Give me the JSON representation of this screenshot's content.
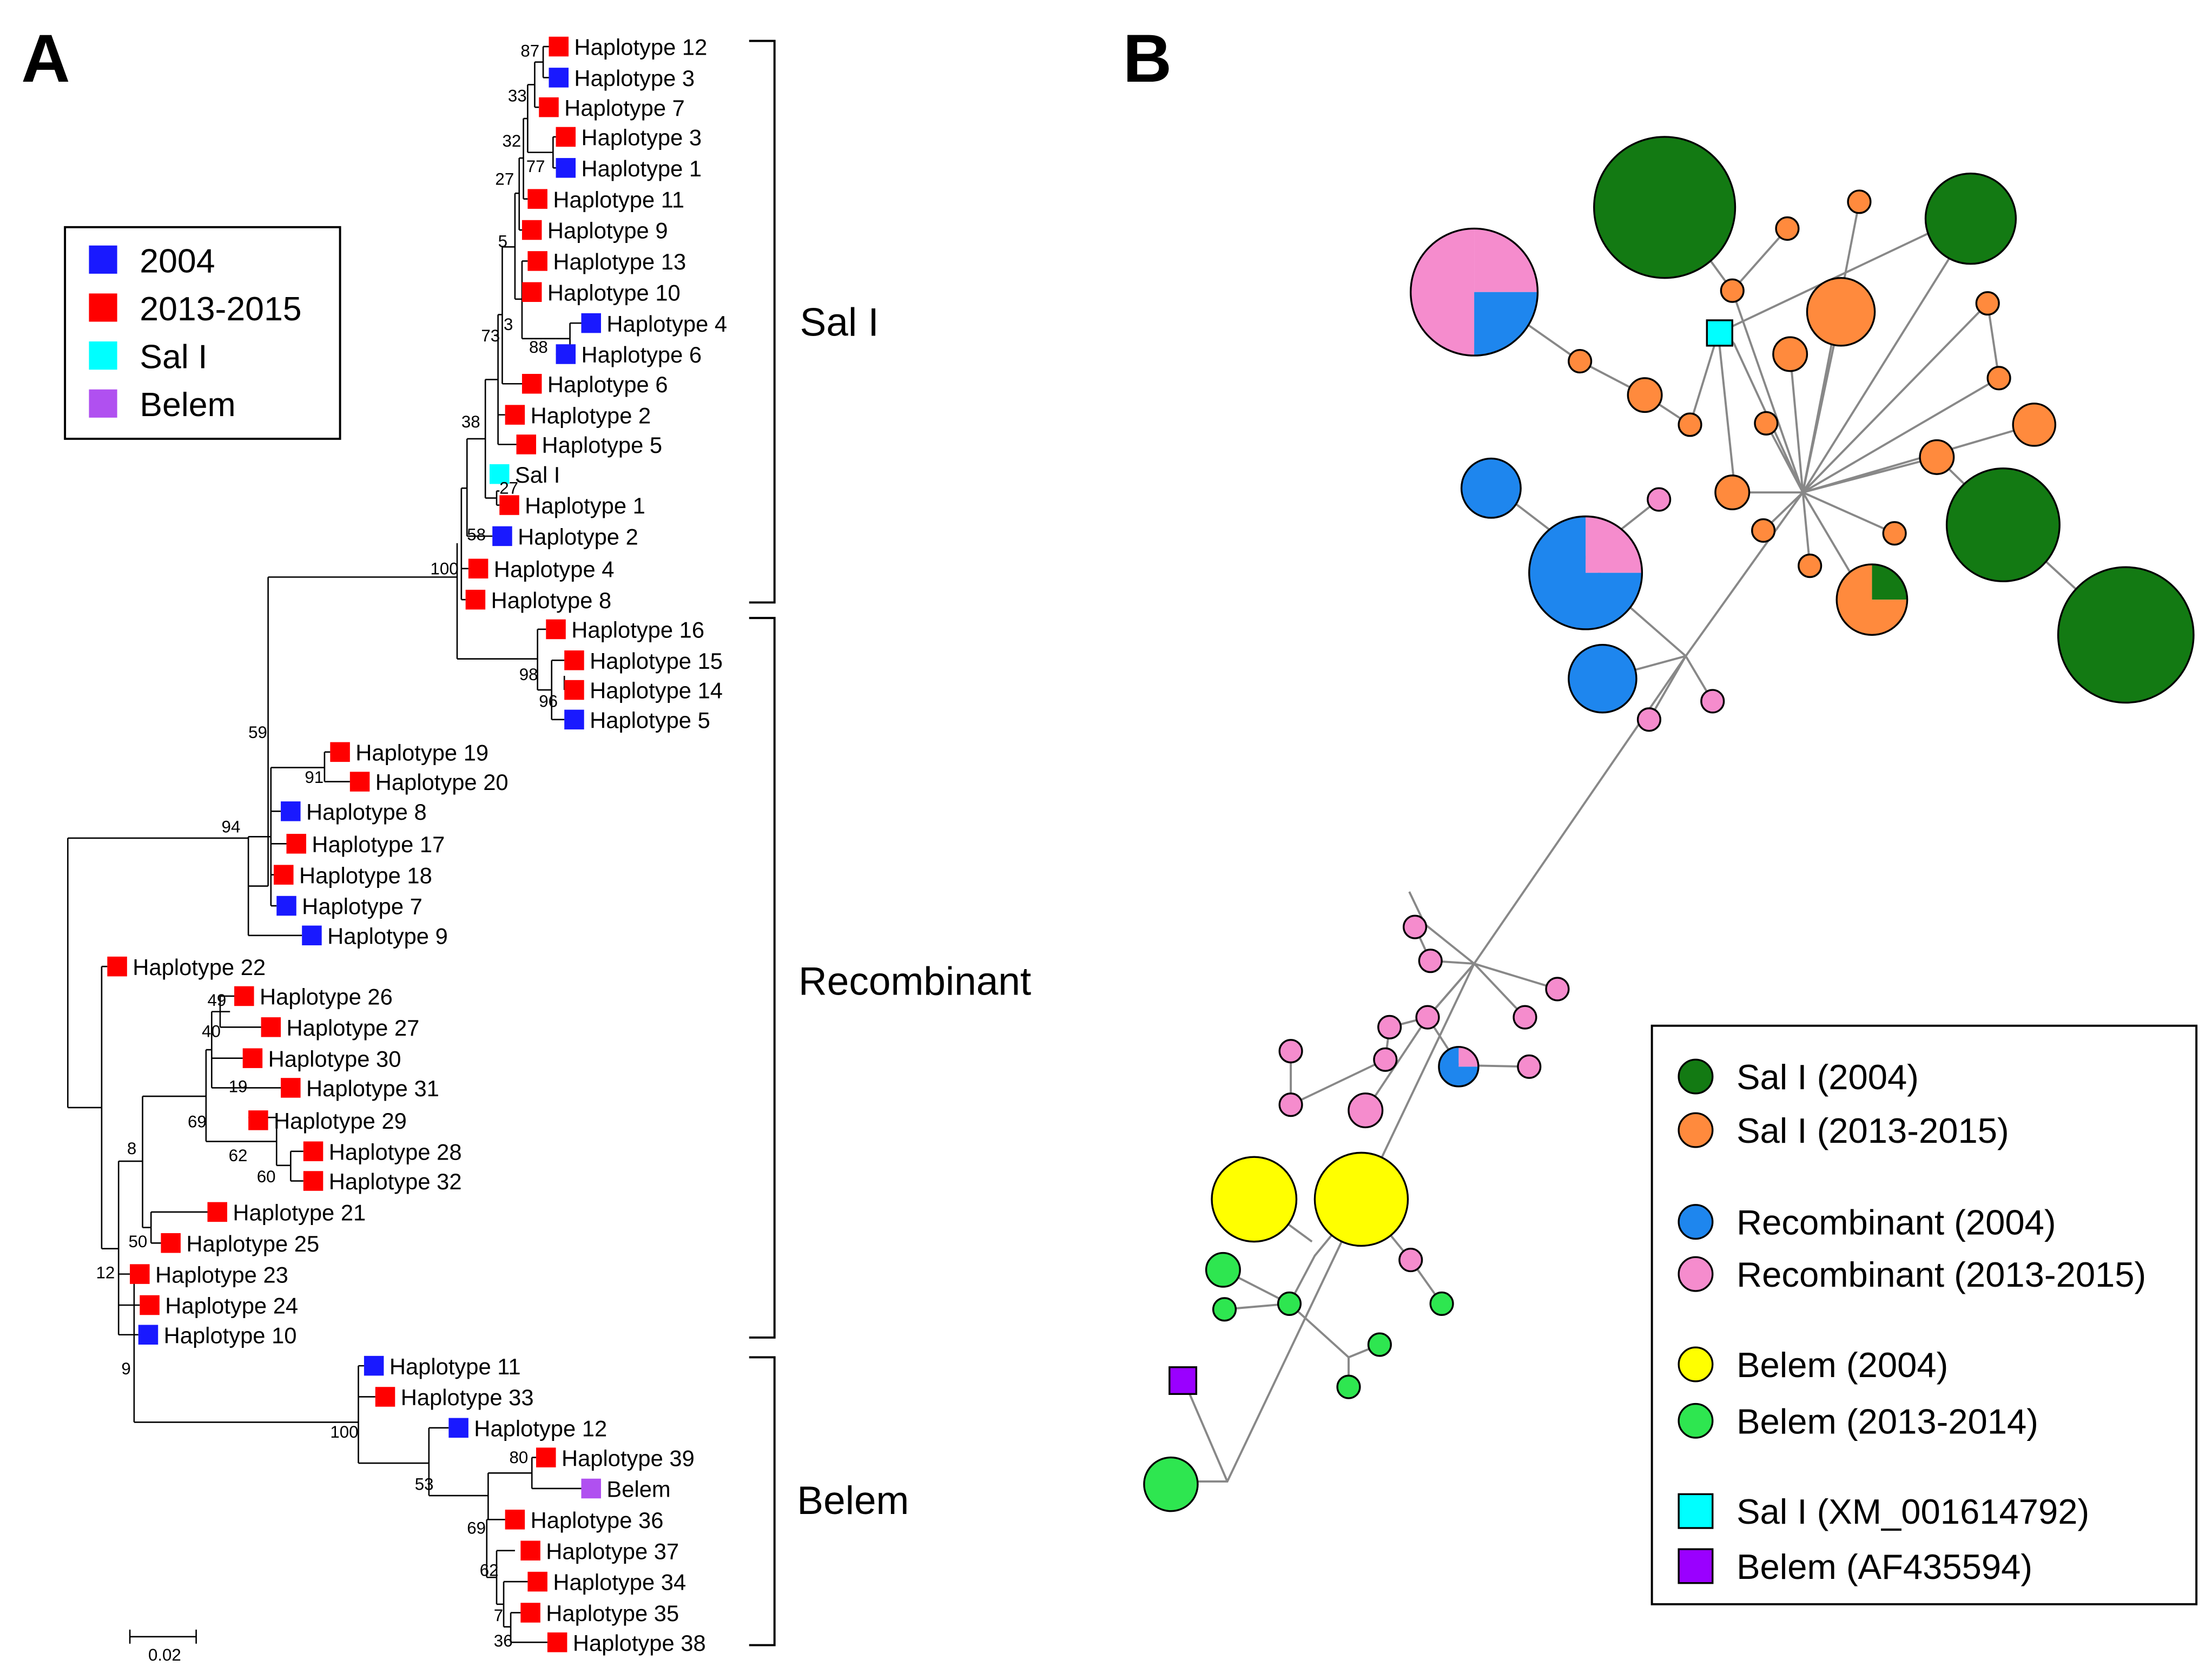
{
  "panels": {
    "a_label": "A",
    "b_label": "B"
  },
  "colors": {
    "y2004": "#1919ff",
    "y2013": "#ff0000",
    "sal": "#00ffff",
    "belem": "#b050f0",
    "sal04": "#137a13",
    "sal13": "#ff8a3d",
    "rec04": "#1e86ee",
    "rec13": "#f58ccd",
    "bel04": "#ffff00",
    "bel13": "#2ee650",
    "salref": "#00ffff",
    "belref": "#9a00ff"
  },
  "tree_legend": [
    {
      "label": "2004",
      "color": "#1919ff"
    },
    {
      "label": "2013-2015",
      "color": "#ff0000"
    },
    {
      "label": "Sal I",
      "color": "#00ffff"
    },
    {
      "label": "Belem",
      "color": "#b050f0"
    }
  ],
  "clades": {
    "sal": "Sal I",
    "recombinant": "Recombinant",
    "belem": "Belem"
  },
  "scale_label": "0.02",
  "bootstraps": [
    "87",
    "33",
    "32",
    "77",
    "27",
    "5",
    "3",
    "88",
    "73",
    "38",
    "27",
    "58",
    "100",
    "98",
    "96",
    "59",
    "91",
    "94",
    "49",
    "40",
    "19",
    "69",
    "62",
    "60",
    "8",
    "50",
    "12",
    "9",
    "100",
    "80",
    "53",
    "69",
    "62",
    "7",
    "36"
  ],
  "tips": [
    {
      "label": "Haplotype 12",
      "cat": "y2013"
    },
    {
      "label": "Haplotype 3",
      "cat": "y2004"
    },
    {
      "label": "Haplotype 7",
      "cat": "y2013"
    },
    {
      "label": "Haplotype 3",
      "cat": "y2013"
    },
    {
      "label": "Haplotype 1",
      "cat": "y2004"
    },
    {
      "label": "Haplotype 11",
      "cat": "y2013"
    },
    {
      "label": "Haplotype 9",
      "cat": "y2013"
    },
    {
      "label": "Haplotype 13",
      "cat": "y2013"
    },
    {
      "label": "Haplotype 10",
      "cat": "y2013"
    },
    {
      "label": "Haplotype 4",
      "cat": "y2004"
    },
    {
      "label": "Haplotype 6",
      "cat": "y2004"
    },
    {
      "label": "Haplotype 6",
      "cat": "y2013"
    },
    {
      "label": "Haplotype 2",
      "cat": "y2013"
    },
    {
      "label": "Haplotype 5",
      "cat": "y2013"
    },
    {
      "label": "Sal I",
      "cat": "sal"
    },
    {
      "label": "Haplotype 1",
      "cat": "y2013"
    },
    {
      "label": "Haplotype 2",
      "cat": "y2004"
    },
    {
      "label": "Haplotype 4",
      "cat": "y2013"
    },
    {
      "label": "Haplotype 8",
      "cat": "y2013"
    },
    {
      "label": "Haplotype 16",
      "cat": "y2013"
    },
    {
      "label": "Haplotype 15",
      "cat": "y2013"
    },
    {
      "label": "Haplotype 14",
      "cat": "y2013"
    },
    {
      "label": "Haplotype 5",
      "cat": "y2004"
    },
    {
      "label": "Haplotype 19",
      "cat": "y2013"
    },
    {
      "label": "Haplotype 20",
      "cat": "y2013"
    },
    {
      "label": "Haplotype 8",
      "cat": "y2004"
    },
    {
      "label": "Haplotype 17",
      "cat": "y2013"
    },
    {
      "label": "Haplotype 18",
      "cat": "y2013"
    },
    {
      "label": "Haplotype 7",
      "cat": "y2004"
    },
    {
      "label": "Haplotype 9",
      "cat": "y2004"
    },
    {
      "label": "Haplotype 22",
      "cat": "y2013"
    },
    {
      "label": "Haplotype 26",
      "cat": "y2013"
    },
    {
      "label": "Haplotype 27",
      "cat": "y2013"
    },
    {
      "label": "Haplotype 30",
      "cat": "y2013"
    },
    {
      "label": "Haplotype 31",
      "cat": "y2013"
    },
    {
      "label": "Haplotype 29",
      "cat": "y2013"
    },
    {
      "label": "Haplotype 28",
      "cat": "y2013"
    },
    {
      "label": "Haplotype 32",
      "cat": "y2013"
    },
    {
      "label": "Haplotype 21",
      "cat": "y2013"
    },
    {
      "label": "Haplotype 25",
      "cat": "y2013"
    },
    {
      "label": "Haplotype 23",
      "cat": "y2013"
    },
    {
      "label": "Haplotype 24",
      "cat": "y2013"
    },
    {
      "label": "Haplotype 10",
      "cat": "y2004"
    },
    {
      "label": "Haplotype 11",
      "cat": "y2004"
    },
    {
      "label": "Haplotype 33",
      "cat": "y2013"
    },
    {
      "label": "Haplotype 12",
      "cat": "y2004"
    },
    {
      "label": "Haplotype 39",
      "cat": "y2013"
    },
    {
      "label": "Belem",
      "cat": "belem"
    },
    {
      "label": "Haplotype 36",
      "cat": "y2013"
    },
    {
      "label": "Haplotype 37",
      "cat": "y2013"
    },
    {
      "label": "Haplotype 34",
      "cat": "y2013"
    },
    {
      "label": "Haplotype 35",
      "cat": "y2013"
    },
    {
      "label": "Haplotype 38",
      "cat": "y2013"
    }
  ],
  "network_legend": [
    {
      "label": "Sal I (2004)",
      "color": "#137a13",
      "shape": "circle"
    },
    {
      "label": "Sal I (2013-2015)",
      "color": "#ff8a3d",
      "shape": "circle"
    },
    {
      "label": "Recombinant (2004)",
      "color": "#1e86ee",
      "shape": "circle"
    },
    {
      "label": "Recombinant (2013-2015)",
      "color": "#f58ccd",
      "shape": "circle"
    },
    {
      "label": "Belem (2004)",
      "color": "#ffff00",
      "shape": "circle"
    },
    {
      "label": "Belem (2013-2014)",
      "color": "#2ee650",
      "shape": "circle"
    },
    {
      "label": "Sal I (XM_001614792)",
      "color": "#00ffff",
      "shape": "square"
    },
    {
      "label": "Belem (AF435594)",
      "color": "#9a00ff",
      "shape": "square"
    }
  ]
}
